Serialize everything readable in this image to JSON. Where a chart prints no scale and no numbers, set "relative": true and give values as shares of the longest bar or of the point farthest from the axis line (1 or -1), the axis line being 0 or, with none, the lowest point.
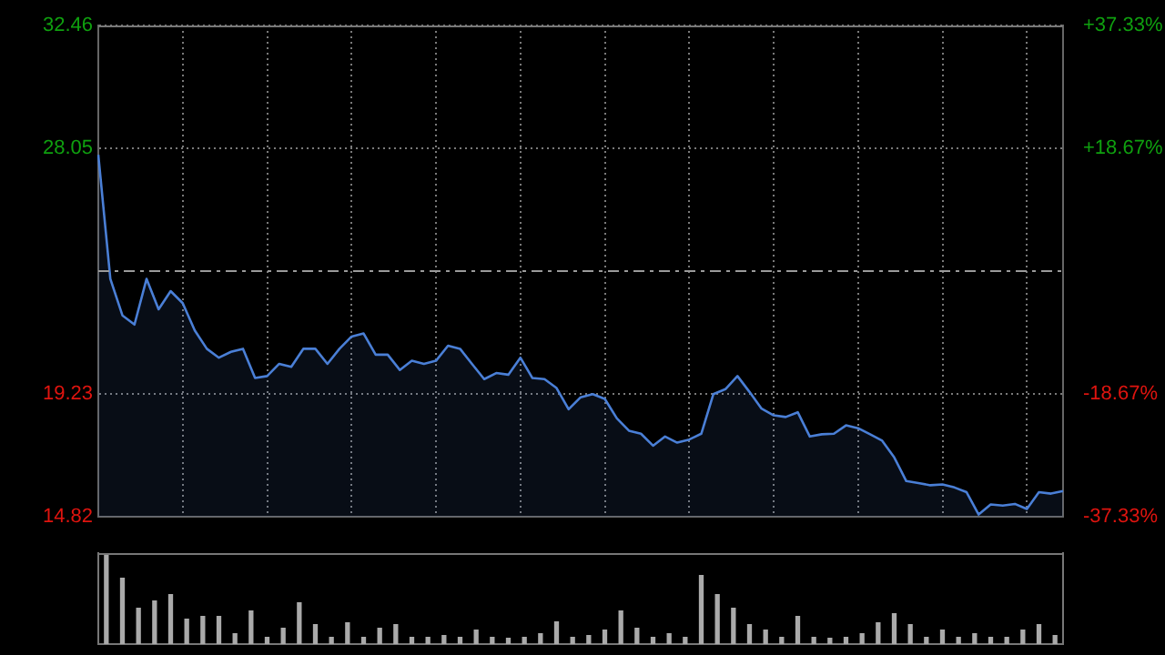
{
  "chart_data": [
    {
      "type": "area",
      "categories": [
        null,
        null,
        null,
        null,
        null,
        null,
        null,
        null,
        null,
        null,
        null,
        null,
        null,
        null,
        null,
        null,
        null,
        null,
        null,
        null,
        null,
        null,
        null,
        null,
        null,
        null,
        null,
        null,
        null,
        null,
        null,
        null,
        null,
        null,
        null,
        null,
        null,
        null,
        null,
        null,
        null,
        null,
        null,
        null,
        null,
        null,
        null,
        null,
        null,
        null,
        null,
        null,
        null,
        null,
        null,
        null,
        null,
        null,
        null,
        null,
        null,
        null,
        null,
        null,
        null,
        null,
        null,
        null,
        null,
        null,
        null,
        null,
        null,
        null,
        null,
        null,
        null,
        null,
        null,
        null,
        null
      ],
      "series": [
        {
          "color": "#4a7fd6",
          "values": [
            27.82,
            23.36,
            22.05,
            21.72,
            23.36,
            22.27,
            22.92,
            22.49,
            21.51,
            20.85,
            20.53,
            20.74,
            20.85,
            19.8,
            19.87,
            20.31,
            20.2,
            20.85,
            20.85,
            20.31,
            20.85,
            21.29,
            21.4,
            20.64,
            20.64,
            20.09,
            20.42,
            20.31,
            20.42,
            20.96,
            20.85,
            20.3,
            19.76,
            19.98,
            19.92,
            20.53,
            19.8,
            19.76,
            19.44,
            18.68,
            19.11,
            19.22,
            19.05,
            18.35,
            17.91,
            17.8,
            17.37,
            17.7,
            17.48,
            17.59,
            17.8,
            19.22,
            19.4,
            19.87,
            19.3,
            18.7,
            18.46,
            18.4,
            18.57,
            17.7,
            17.78,
            17.8,
            18.1,
            18.0,
            17.78,
            17.55,
            16.95,
            16.1,
            16.03,
            15.95,
            15.98,
            15.87,
            15.7,
            14.9,
            15.26,
            15.22,
            15.28,
            15.1,
            15.7,
            15.65,
            15.74
          ]
        }
      ],
      "ylim": [
        14.82,
        32.46
      ],
      "yticks": [
        14.82,
        19.23,
        28.05,
        32.46
      ],
      "y2lim": [
        -37.33,
        37.33
      ],
      "y2ticks": [
        {
          "value": -37.33,
          "label": "-37.33%"
        },
        {
          "value": -18.67,
          "label": "-18.67%"
        },
        {
          "value": 18.67,
          "label": "+18.67%"
        },
        {
          "value": 37.33,
          "label": "+37.33%"
        }
      ],
      "ref_lines": [
        {
          "axis": "y",
          "value": 23.64,
          "line_style": "dashed"
        }
      ],
      "grid": true,
      "legend": false
    },
    {
      "type": "bar",
      "relative": true,
      "legend": false,
      "categories": [
        null,
        null,
        null,
        null,
        null,
        null,
        null,
        null,
        null,
        null,
        null,
        null,
        null,
        null,
        null,
        null,
        null,
        null,
        null,
        null,
        null,
        null,
        null,
        null,
        null,
        null,
        null,
        null,
        null,
        null,
        null,
        null,
        null,
        null,
        null,
        null,
        null,
        null,
        null,
        null,
        null,
        null,
        null,
        null,
        null,
        null,
        null,
        null,
        null,
        null,
        null,
        null,
        null,
        null,
        null,
        null,
        null,
        null,
        null,
        null
      ],
      "color": "#aaaaaa",
      "values": [
        1,
        0.73,
        0.4,
        0.48,
        0.55,
        0.28,
        0.31,
        0.31,
        0.12,
        0.37,
        0.08,
        0.18,
        0.46,
        0.22,
        0.08,
        0.24,
        0.08,
        0.18,
        0.22,
        0.08,
        0.08,
        0.1,
        0.08,
        0.16,
        0.08,
        0.07,
        0.08,
        0.12,
        0.25,
        0.08,
        0.1,
        0.16,
        0.37,
        0.18,
        0.08,
        0.12,
        0.08,
        0.76,
        0.55,
        0.4,
        0.22,
        0.16,
        0.08,
        0.31,
        0.08,
        0.07,
        0.08,
        0.12,
        0.24,
        0.34,
        0.22,
        0.08,
        0.16,
        0.08,
        0.12,
        0.08,
        0.08,
        0.16,
        0.22,
        0.1
      ]
    }
  ]
}
